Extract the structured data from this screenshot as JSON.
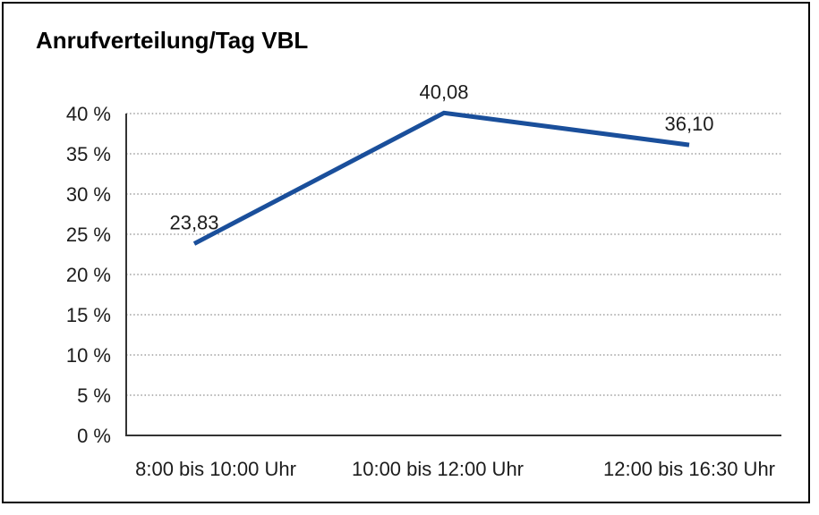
{
  "title": "Anrufverteilung/Tag VBL",
  "chart_data": {
    "type": "line",
    "title": "Anrufverteilung/Tag VBL",
    "categories": [
      "8:00 bis 10:00 Uhr",
      "10:00 bis 12:00 Uhr",
      "12:00 bis 16:30 Uhr"
    ],
    "values": [
      23.83,
      40.08,
      36.1
    ],
    "data_labels": [
      "23,83",
      "40,08",
      "36,10"
    ],
    "xlabel": "",
    "ylabel": "",
    "ylim": [
      0,
      40
    ],
    "yticks": [
      0,
      5,
      10,
      15,
      20,
      25,
      30,
      35,
      40
    ],
    "yticklabels": [
      "0 %",
      "5 %",
      "10 %",
      "15 %",
      "20 %",
      "25 %",
      "30 %",
      "35 %",
      "40 %"
    ],
    "grid": "horizontal-dotted",
    "legend": "none",
    "series_name": "Anrufverteilung/Tag VBL"
  },
  "colors": {
    "line": "#1a4f9b",
    "grid": "#8a8a8a",
    "axis": "#333333",
    "text": "#1c1c1c",
    "title_text": "#000000",
    "background": "#ffffff",
    "border": "#000000"
  }
}
